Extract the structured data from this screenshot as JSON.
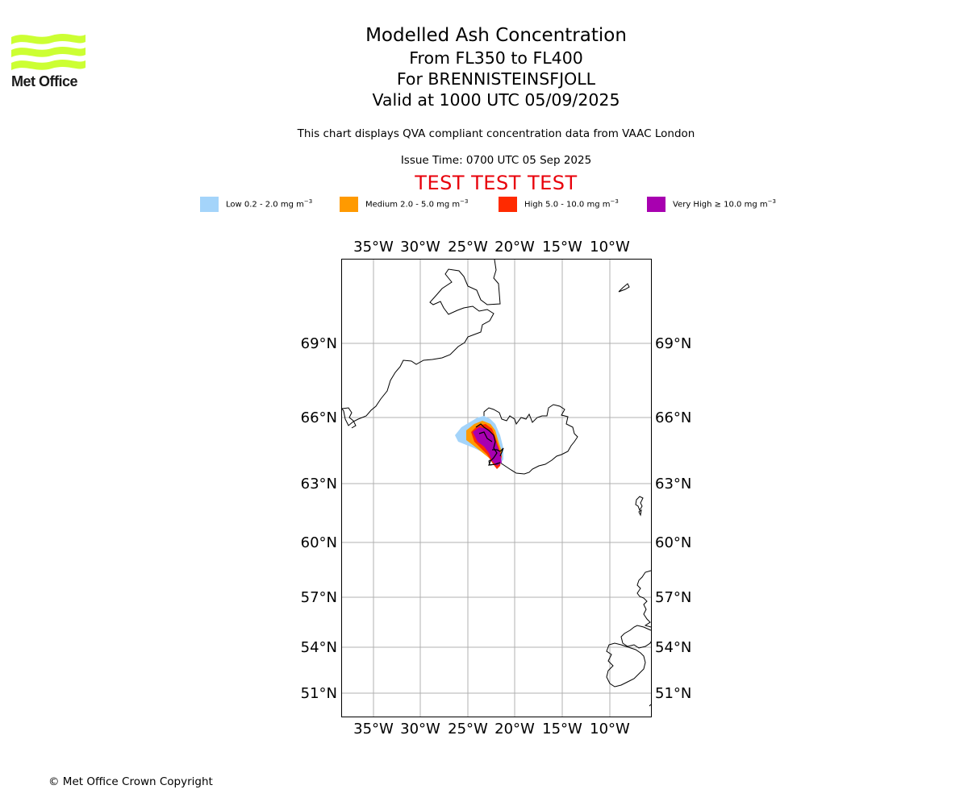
{
  "logo": {
    "name": "Met Office",
    "color": "#ccff33"
  },
  "header": {
    "title": "Modelled Ash Concentration",
    "level_range": "From FL350 to FL400",
    "volcano": "For BRENNISTEINSFJOLL",
    "valid_time": "Valid at 1000 UTC 05/09/2025",
    "description": "This chart displays QVA compliant concentration data from VAAC London",
    "issue_time": "Issue Time: 0700 UTC 05 Sep 2025",
    "test_banner": "TEST TEST TEST",
    "test_color": "#e8000b"
  },
  "legend": [
    {
      "label": "Low 0.2 - 2.0 mg m",
      "unit_sup": "−3",
      "color": "#a4d4fa"
    },
    {
      "label": "Medium 2.0 - 5.0 mg m",
      "unit_sup": "−3",
      "color": "#ff9a00"
    },
    {
      "label": "High 5.0 - 10.0 mg m",
      "unit_sup": "−3",
      "color": "#ff2a00"
    },
    {
      "label": "Very High ≥ 10.0 mg m",
      "unit_sup": "−3",
      "color": "#a800b0"
    }
  ],
  "map": {
    "lon_labels": [
      "35°W",
      "30°W",
      "25°W",
      "20°W",
      "15°W",
      "10°W"
    ],
    "lat_labels": [
      "69°N",
      "66°N",
      "63°N",
      "60°N",
      "57°N",
      "54°N",
      "51°N"
    ],
    "gridline_color": "#b0b0b0"
  },
  "footer": {
    "copyright": "© Met Office Crown Copyright"
  }
}
